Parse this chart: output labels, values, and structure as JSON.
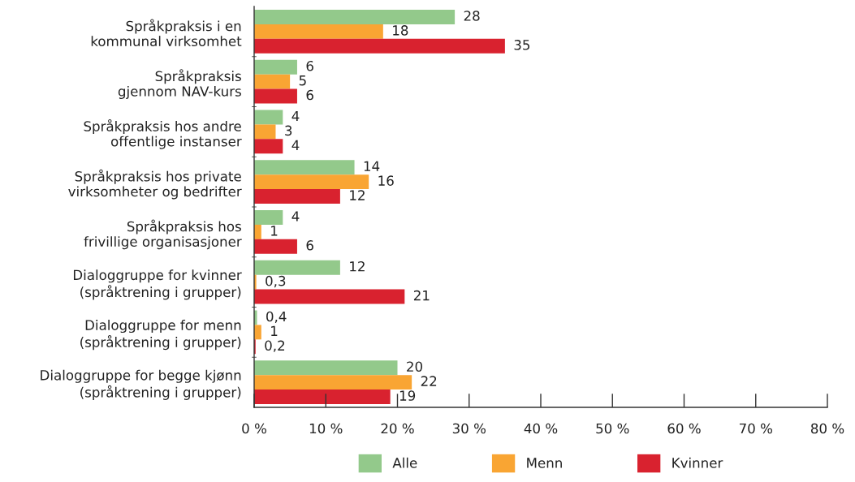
{
  "chart_data": {
    "type": "bar",
    "orientation": "horizontal",
    "categories": [
      "Språkpraksis i en\nkommunal virksomhet",
      "Språkpraksis\ngjennom NAV-kurs",
      "Språkpraksis hos andre\noffentlige instanser",
      "Språkpraksis hos private\nvirksomheter og bedrifter",
      "Språkpraksis hos\nfrivillige organisasjoner",
      "Dialoggruppe for kvinner\n(språktrening i grupper)",
      "Dialoggruppe for menn\n(språktrening i grupper)",
      "Dialoggruppe for begge kjønn\n(språktrening i grupper)"
    ],
    "series": [
      {
        "name": "Alle",
        "color": "#93c98b",
        "values": [
          28,
          6,
          4,
          14,
          4,
          12,
          0.4,
          20
        ],
        "value_labels": [
          "28",
          "6",
          "4",
          "14",
          "4",
          "12",
          "0,4",
          "20"
        ]
      },
      {
        "name": "Menn",
        "color": "#f9a533",
        "values": [
          18,
          5,
          3,
          16,
          1,
          0.3,
          1,
          22
        ],
        "value_labels": [
          "18",
          "5",
          "3",
          "16",
          "1",
          "0,3",
          "1",
          "22"
        ]
      },
      {
        "name": "Kvinner",
        "color": "#d9222f",
        "values": [
          35,
          6,
          4,
          12,
          6,
          21,
          0.2,
          19
        ],
        "value_labels": [
          "35",
          "6",
          "4",
          "12",
          "6",
          "21",
          "0,2",
          "19"
        ]
      }
    ],
    "xlim": [
      0,
      80
    ],
    "xticks": [
      {
        "value": 0,
        "label": "0 %"
      },
      {
        "value": 10,
        "label": "10 %"
      },
      {
        "value": 20,
        "label": "20 %"
      },
      {
        "value": 30,
        "label": "30 %"
      },
      {
        "value": 40,
        "label": "40 %"
      },
      {
        "value": 50,
        "label": "50 %"
      },
      {
        "value": 60,
        "label": "60 %"
      },
      {
        "value": 70,
        "label": "70 %"
      },
      {
        "value": 80,
        "label": "80 %"
      }
    ],
    "grid": false,
    "legend": "bottom"
  }
}
